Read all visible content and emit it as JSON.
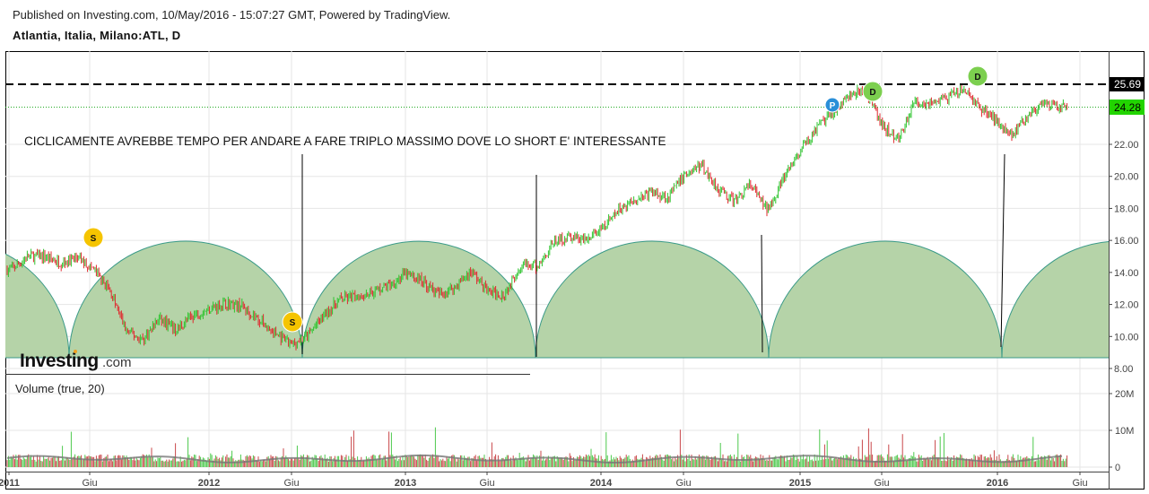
{
  "header": {
    "published": "Published on Investing.com, 10/May/2016 - 15:07:27 GMT, Powered by TradingView.",
    "symbol": "Atlantia, Italia, Milano:ATL, D"
  },
  "annotation": "CICLICAMENTE AVREBBE TEMPO PER ANDARE A FARE TRIPLO MASSIMO DOVE LO SHORT E' INTERESSANTE",
  "logo": {
    "brand": "Investing",
    "suffix": ".com"
  },
  "volume_label": "Volume (true, 20)",
  "chart_data": {
    "type": "candlestick",
    "interval": "D",
    "y_axis": {
      "ticks": [
        "8.00",
        "10.00",
        "12.00",
        "14.00",
        "16.00",
        "18.00",
        "20.00",
        "22.00"
      ],
      "range": [
        7.9,
        26.5
      ]
    },
    "x_axis": {
      "ticks": [
        "2011",
        "Giu",
        "2012",
        "Giu",
        "2013",
        "Giu",
        "2014",
        "Giu",
        "2015",
        "Giu",
        "2016",
        "Giu"
      ]
    },
    "monthly_close_approx": {
      "start": "2011-01",
      "values": [
        14.2,
        15.0,
        15.0,
        14.6,
        14.9,
        14.2,
        12.8,
        10.3,
        9.8,
        11.1,
        10.4,
        11.3,
        11.7,
        12.1,
        11.9,
        11.1,
        10.2,
        9.5,
        10.0,
        11.3,
        12.3,
        12.5,
        12.8,
        13.2,
        13.9,
        13.5,
        12.6,
        13.1,
        14.1,
        12.8,
        12.6,
        14.5,
        14.3,
        15.9,
        16.2,
        16.0,
        16.7,
        17.9,
        18.6,
        19.0,
        18.7,
        20.1,
        20.7,
        19.3,
        18.4,
        19.5,
        17.9,
        19.8,
        21.5,
        22.9,
        24.0,
        25.0,
        25.4,
        23.2,
        22.3,
        24.6,
        24.6,
        24.9,
        25.4,
        24.3,
        23.5,
        22.6,
        24.0,
        24.4,
        24.28
      ]
    },
    "price_labels": {
      "resistance": "25.69",
      "last": "24.28"
    },
    "resistance_level": 25.69,
    "last_price": 24.28,
    "volume_axis": {
      "ticks": [
        "0",
        "10M",
        "20M"
      ]
    },
    "cycle_arcs_bottoms": [
      "2011-05",
      "2012-06",
      "2013-08",
      "2014-10",
      "2016-01"
    ],
    "markers": [
      {
        "label": "S",
        "date": "2011-06",
        "color": "#f5c400"
      },
      {
        "label": "S",
        "date": "2012-06",
        "color": "#f5c400"
      },
      {
        "label": "P",
        "date": "2015-03",
        "color": "#2a8fd8"
      },
      {
        "label": "D",
        "date": "2015-05",
        "color": "#7ccf4f"
      },
      {
        "label": "D",
        "date": "2015-11",
        "color": "#7ccf4f"
      }
    ],
    "colors": {
      "up": "#2fc42f",
      "down": "#e0282e",
      "arc_fill": "#b5d3a8",
      "arc_stroke": "#3a9a88",
      "last_bg": "#22d400"
    }
  }
}
